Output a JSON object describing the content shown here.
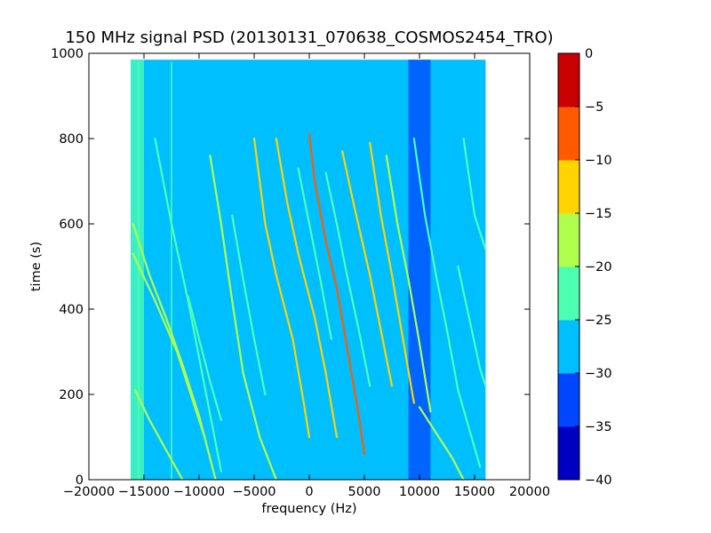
{
  "chart_data": {
    "type": "heatmap",
    "title": "150 MHz signal PSD (20130131_070638_COSMOS2454_TRO)",
    "xlabel": "frequency (Hz)",
    "ylabel": "time (s)",
    "xlim": [
      -20000,
      20000
    ],
    "ylim": [
      0,
      1000
    ],
    "x_ticks": [
      -20000,
      -15000,
      -10000,
      -5000,
      0,
      5000,
      10000,
      15000,
      20000
    ],
    "y_ticks": [
      0,
      200,
      400,
      600,
      800,
      1000
    ],
    "data_extent": {
      "x": [
        -16200,
        16000
      ],
      "y": [
        0,
        985
      ]
    },
    "background_level": -27.5,
    "colorbar": {
      "levels": [
        -40,
        -35,
        -30,
        -25,
        -20,
        -15,
        -10,
        -5,
        0
      ],
      "tick_labels": [
        "-40",
        "-35",
        "-30",
        "-25",
        "-20",
        "-15",
        "-10",
        "-5",
        "0"
      ],
      "colors": [
        "#0000c0",
        "#0045ff",
        "#00bfff",
        "#4dffb0",
        "#b0ff4d",
        "#ffd400",
        "#ff5a00",
        "#c80000"
      ]
    },
    "noise_bands": [
      {
        "x": [
          -16200,
          -15000
        ],
        "level": -22.5
      },
      {
        "x": [
          9000,
          11000
        ],
        "level": -32.5
      }
    ],
    "vertical_lines": [
      {
        "x": -12500,
        "y": [
          0,
          980
        ],
        "level": -22.5
      },
      {
        "x": -15500,
        "y": [
          0,
          980
        ],
        "level": -22.5
      }
    ],
    "series": [
      {
        "points": [
          [
            -15800,
            210
          ],
          [
            -14500,
            140
          ],
          [
            -13000,
            70
          ],
          [
            -11500,
            0
          ]
        ],
        "level": -17.5
      },
      {
        "points": [
          [
            -16000,
            600
          ],
          [
            -14500,
            480
          ],
          [
            -13000,
            380
          ],
          [
            -11500,
            270
          ],
          [
            -10000,
            150
          ],
          [
            -8500,
            0
          ]
        ],
        "level": -17.5
      },
      {
        "points": [
          [
            -14000,
            800
          ],
          [
            -12500,
            600
          ],
          [
            -11000,
            420
          ],
          [
            -9500,
            220
          ],
          [
            -8000,
            20
          ]
        ],
        "level": -22.5
      },
      {
        "points": [
          [
            -16000,
            530
          ],
          [
            -14000,
            420
          ],
          [
            -12000,
            300
          ],
          [
            -10500,
            180
          ],
          [
            -9500,
            100
          ]
        ],
        "level": -17.5
      },
      {
        "points": [
          [
            -9000,
            760
          ],
          [
            -8000,
            600
          ],
          [
            -7000,
            420
          ],
          [
            -6000,
            250
          ],
          [
            -4500,
            100
          ],
          [
            -3000,
            0
          ]
        ],
        "level": -17.5
      },
      {
        "points": [
          [
            -5000,
            800
          ],
          [
            -4000,
            600
          ],
          [
            -3000,
            480
          ],
          [
            -1500,
            330
          ],
          [
            -500,
            180
          ],
          [
            0,
            100
          ]
        ],
        "level": -15
      },
      {
        "points": [
          [
            -3000,
            800
          ],
          [
            -2000,
            650
          ],
          [
            -1000,
            530
          ],
          [
            500,
            380
          ],
          [
            1500,
            250
          ],
          [
            2500,
            100
          ]
        ],
        "level": -12.5
      },
      {
        "points": [
          [
            0,
            810
          ],
          [
            500,
            700
          ],
          [
            1500,
            560
          ],
          [
            2500,
            450
          ],
          [
            3500,
            300
          ],
          [
            4500,
            150
          ],
          [
            5000,
            60
          ]
        ],
        "level": -7.5
      },
      {
        "points": [
          [
            3000,
            770
          ],
          [
            4000,
            650
          ],
          [
            5500,
            480
          ],
          [
            6500,
            350
          ],
          [
            7500,
            220
          ]
        ],
        "level": -12.5
      },
      {
        "points": [
          [
            5500,
            790
          ],
          [
            6500,
            620
          ],
          [
            7500,
            480
          ],
          [
            8500,
            330
          ],
          [
            9500,
            180
          ]
        ],
        "level": -12.5
      },
      {
        "points": [
          [
            7000,
            760
          ],
          [
            8000,
            600
          ],
          [
            9000,
            470
          ],
          [
            10000,
            320
          ],
          [
            11000,
            160
          ]
        ],
        "level": -17.5
      },
      {
        "points": [
          [
            9500,
            800
          ],
          [
            10500,
            620
          ],
          [
            11500,
            480
          ],
          [
            12500,
            350
          ],
          [
            13500,
            210
          ],
          [
            15500,
            30
          ]
        ],
        "level": -22.5
      },
      {
        "points": [
          [
            10000,
            170
          ],
          [
            11500,
            110
          ],
          [
            13000,
            50
          ],
          [
            14000,
            0
          ]
        ],
        "level": -17.5
      },
      {
        "points": [
          [
            14000,
            800
          ],
          [
            15000,
            620
          ],
          [
            16000,
            540
          ]
        ],
        "level": -22.5
      },
      {
        "points": [
          [
            13500,
            500
          ],
          [
            14500,
            380
          ],
          [
            15500,
            260
          ],
          [
            16000,
            220
          ]
        ],
        "level": -22.5
      },
      {
        "points": [
          [
            -7000,
            620
          ],
          [
            -6000,
            470
          ],
          [
            -5000,
            330
          ],
          [
            -4000,
            200
          ]
        ],
        "level": -22.5
      },
      {
        "points": [
          [
            -1000,
            730
          ],
          [
            0,
            600
          ],
          [
            1000,
            470
          ],
          [
            2000,
            330
          ]
        ],
        "level": -22.5
      },
      {
        "points": [
          [
            -11000,
            430
          ],
          [
            -10000,
            330
          ],
          [
            -9000,
            230
          ],
          [
            -8000,
            140
          ]
        ],
        "level": -22.5
      },
      {
        "points": [
          [
            1500,
            720
          ],
          [
            2500,
            600
          ],
          [
            3500,
            470
          ],
          [
            4500,
            350
          ],
          [
            5500,
            220
          ]
        ],
        "level": -22.5
      }
    ]
  }
}
